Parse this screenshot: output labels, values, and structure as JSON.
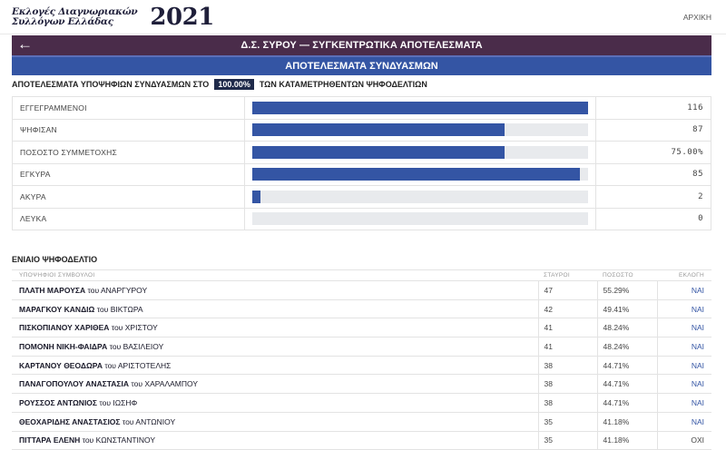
{
  "header": {
    "logo_line1": "Εκλογές Διαγνωριακών",
    "logo_line2": "Συλλόγων Ελλάδας",
    "year": "2021",
    "home_link": "ΑΡΧΙΚΗ"
  },
  "title_bar": {
    "back_icon": "arrow-left-icon",
    "title": "Δ.Σ. ΣΥΡΟΥ — ΣΥΓΚΕΝΤΡΩΤΙΚΑ ΑΠΟΤΕΛΕΣΜΑΤΑ"
  },
  "sub_bar": {
    "title": "ΑΠΟΤΕΛΕΣΜΑΤΑ ΣΥΝΔΥΑΣΜΩΝ"
  },
  "results_heading": {
    "prefix": "ΑΠΟΤΕΛΕΣΜΑΤΑ ΥΠΟΨΗΦΙΩΝ ΣΥΝΔΥΑΣΜΩΝ ΣΤΟ",
    "percent": "100.00%",
    "suffix": "ΤΩΝ ΚΑΤΑΜΕΤΡΗΘΕΝΤΩΝ ΨΗΦΟΔΕΛΤΙΩΝ"
  },
  "stats": [
    {
      "label": "ΕΓΓΕΓΡΑΜΜΕΝΟΙ",
      "value": "116",
      "fill": 1.0
    },
    {
      "label": "ΨΗΦΙΣΑΝ",
      "value": "87",
      "fill": 0.75
    },
    {
      "label": "ΠΟΣΟΣΤΟ ΣΥΜΜΕΤΟΧΗΣ",
      "value": "75.00%",
      "fill": 0.75
    },
    {
      "label": "ΕΓΚΥΡΑ",
      "value": "85",
      "fill": 0.977
    },
    {
      "label": "ΑΚΥΡΑ",
      "value": "2",
      "fill": 0.023
    },
    {
      "label": "ΛΕΥΚΑ",
      "value": "0",
      "fill": 0.0
    }
  ],
  "ballot": {
    "heading": "ΕΝΙΑΙΟ ΨΗΦΟΔΕΛΤΙΟ",
    "columns": {
      "candidates": "ΥΠΟΨΗΦΙΟΙ ΣΥΜΒΟΥΛΟΙ",
      "votes": "ΣΤΑΥΡΟΙ",
      "percent": "ΠΟΣΟΣΤΟ",
      "elected": "ΕΚΛΟΓΗ"
    },
    "rows": [
      {
        "name": "ΠΛΑΤΗ ΜΑΡΟΥΣΑ",
        "of": "του ΑΝΑΡΓΥΡΟΥ",
        "votes": "47",
        "percent": "55.29%",
        "elected": "ΝΑΙ",
        "yes": true
      },
      {
        "name": "ΜΑΡΑΓΚΟΥ ΚΑΝΔΙΩ",
        "of": "του ΒΙΚΤΩΡΑ",
        "votes": "42",
        "percent": "49.41%",
        "elected": "ΝΑΙ",
        "yes": true
      },
      {
        "name": "ΠΙΣΚΟΠΙΑΝΟΥ ΧΑΡΙΘΕΑ",
        "of": "του ΧΡΙΣΤΟΥ",
        "votes": "41",
        "percent": "48.24%",
        "elected": "ΝΑΙ",
        "yes": true
      },
      {
        "name": "ΠΟΜΟΝΗ ΝΙΚΗ-ΦΑΙΔΡΑ",
        "of": "του ΒΑΣΙΛΕΙΟΥ",
        "votes": "41",
        "percent": "48.24%",
        "elected": "ΝΑΙ",
        "yes": true
      },
      {
        "name": "ΚΑΡΤΑΝΟΥ ΘΕΟΔΩΡΑ",
        "of": "του ΑΡΙΣΤΟΤΕΛΗΣ",
        "votes": "38",
        "percent": "44.71%",
        "elected": "ΝΑΙ",
        "yes": true
      },
      {
        "name": "ΠΑΝΑΓΟΠΟΥΛΟΥ ΑΝΑΣΤΑΣΙΑ",
        "of": "του ΧΑΡΑΛΑΜΠΟΥ",
        "votes": "38",
        "percent": "44.71%",
        "elected": "ΝΑΙ",
        "yes": true
      },
      {
        "name": "ΡΟΥΣΣΟΣ ΑΝΤΩΝΙΟΣ",
        "of": "του ΙΩΣΗΦ",
        "votes": "38",
        "percent": "44.71%",
        "elected": "ΝΑΙ",
        "yes": true
      },
      {
        "name": "ΘΕΟΧΑΡΙΔΗΣ ΑΝΑΣΤΑΣΙΟΣ",
        "of": "του ΑΝΤΩΝΙΟΥ",
        "votes": "35",
        "percent": "41.18%",
        "elected": "ΝΑΙ",
        "yes": true
      },
      {
        "name": "ΠΙΤΤΑΡΑ ΕΛΕΝΗ",
        "of": "του ΚΩΝΣΤΑΝΤΙΝΟΥ",
        "votes": "35",
        "percent": "41.18%",
        "elected": "ΟΧΙ",
        "yes": false
      }
    ]
  },
  "colors": {
    "title_bar": "#4a2c4a",
    "accent_blue": "#3455a4",
    "bar_track": "#e8eaed"
  }
}
